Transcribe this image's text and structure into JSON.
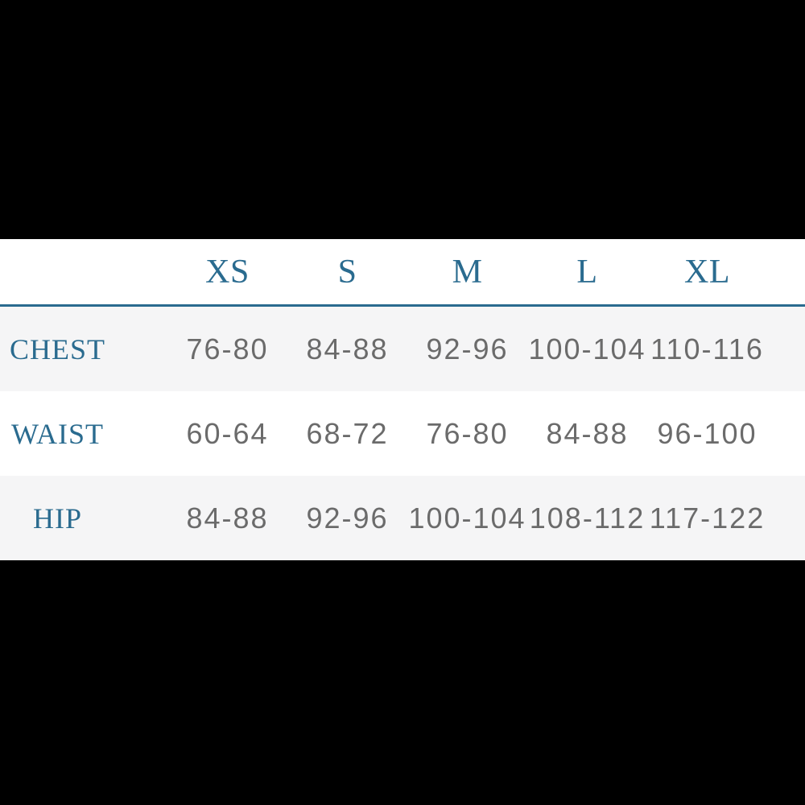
{
  "chart_data": {
    "type": "table",
    "columns": [
      "XS",
      "S",
      "M",
      "L",
      "XL"
    ],
    "rows": [
      {
        "label": "CHEST",
        "values": [
          "76-80",
          "84-88",
          "92-96",
          "100-104",
          "110-116"
        ]
      },
      {
        "label": "WAIST",
        "values": [
          "60-64",
          "68-72",
          "76-80",
          "84-88",
          "96-100"
        ]
      },
      {
        "label": "HIP",
        "values": [
          "84-88",
          "92-96",
          "100-104",
          "108-112",
          "117-122"
        ]
      }
    ],
    "layout": {
      "legend": "none",
      "grid": "off",
      "header_rule": "full-width horizontal accent line under header row",
      "alternating_rows": [
        "alt",
        "plain",
        "alt"
      ]
    },
    "colors": {
      "accent": "#2a6b8f",
      "value_text": "#6b6b6b",
      "alt_row_bg": "#f5f5f6",
      "table_bg": "#ffffff",
      "page_bg": "#000000"
    }
  }
}
